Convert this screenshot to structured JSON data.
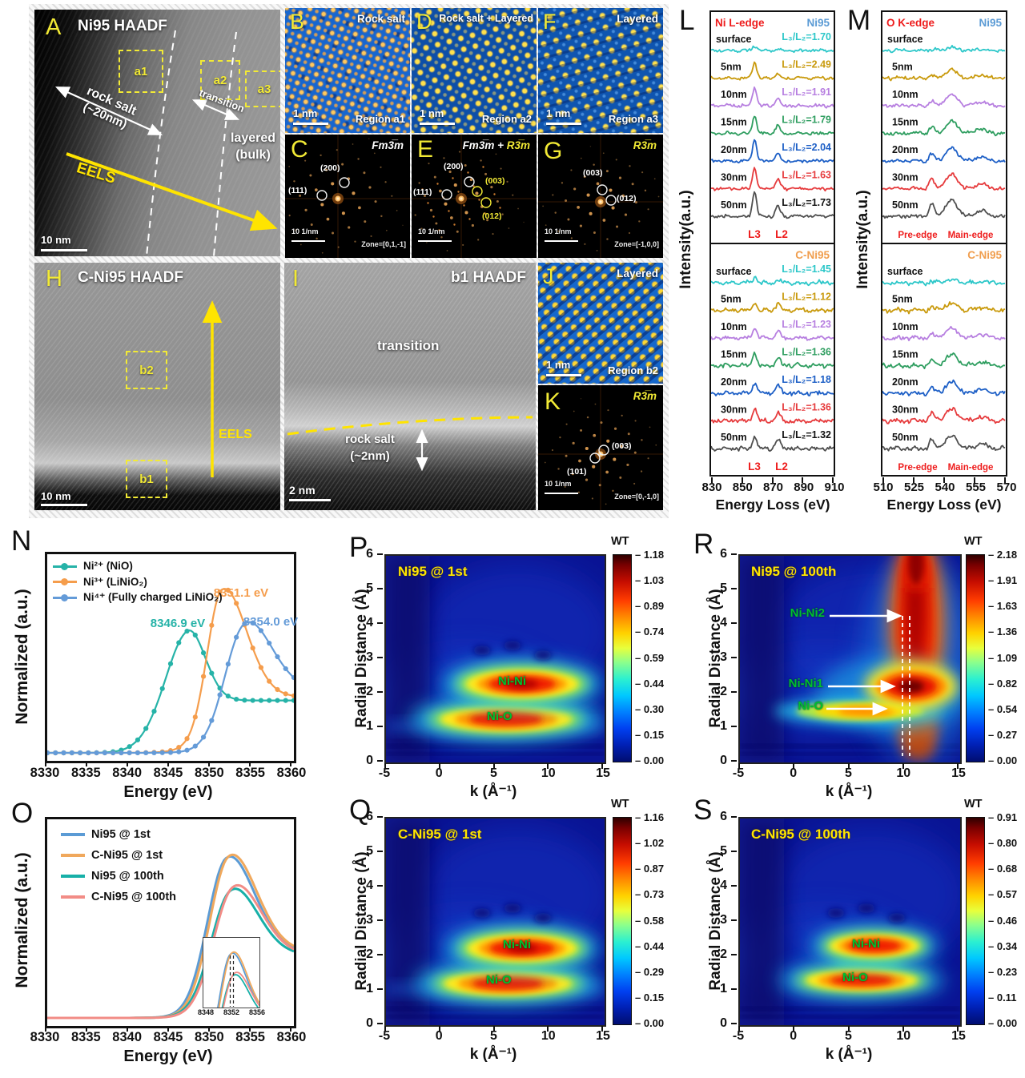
{
  "A": {
    "letter": "A",
    "title": "Ni95 HAADF",
    "a1": "a1",
    "a2": "a2",
    "a3": "a3",
    "rock_salt_1": "rock salt",
    "rock_salt_2": "(~20nm)",
    "transition": "transition",
    "layered_1": "layered",
    "layered_2": "(bulk)",
    "eels": "EELS",
    "scalebar": "10 nm"
  },
  "B": {
    "letter": "B",
    "title": "Rock salt",
    "scalebar": "1 nm",
    "region": "Region a1"
  },
  "C": {
    "letter": "C",
    "phase": "Fm3̅m",
    "spot_200": "(200)",
    "spot_111": "(111)",
    "scalebar": "10 1/nm",
    "zone": "Zone=[0,1,-1]"
  },
  "D": {
    "letter": "D",
    "title": "Rock salt + Layered",
    "scalebar": "1 nm",
    "region": "Region a2"
  },
  "E": {
    "letter": "E",
    "phase_fm": "Fm3̅m +",
    "phase_r": "R3̅m",
    "spot_200": "(200)",
    "spot_111": "(111)",
    "spot_003": "(003)",
    "spot_012": "(012)",
    "scalebar": "10 1/nm"
  },
  "F": {
    "letter": "F",
    "title": "Layered",
    "scalebar": "1 nm",
    "region": "Region a3"
  },
  "G": {
    "letter": "G",
    "phase": "R3̅m",
    "spot_003": "(003)",
    "spot_012": "(012)",
    "scalebar": "10 1/nm",
    "zone": "Zone=[-1,0,0]"
  },
  "H": {
    "letter": "H",
    "title": "C-Ni95 HAADF",
    "b2": "b2",
    "b1": "b1",
    "eels": "EELS",
    "scalebar": "10 nm"
  },
  "I": {
    "letter": "I",
    "title": "b1 HAADF",
    "transition": "transition",
    "rock_salt_1": "rock salt",
    "rock_salt_2": "(~2nm)",
    "scalebar": "2 nm"
  },
  "J": {
    "letter": "J",
    "title": "Layered",
    "scalebar": "1 nm",
    "region": "Region b2"
  },
  "K": {
    "letter": "K",
    "phase": "R3̅m",
    "spot_003": "(003)",
    "spot_101": "(101)",
    "scalebar": "10 1/nm",
    "zone": "Zone=[0,-1,0]"
  },
  "L": {
    "letter": "L",
    "edge": "Ni L-edge",
    "edge_color": "#ee1c1c",
    "sample_top": "Ni95",
    "sample_top_color": "#5b9bd5",
    "sample_bottom": "C-Ni95",
    "sample_bottom_color": "#f09e4e",
    "ylabel": "Intensity(a.u.)",
    "xlabel": "Energy Loss (eV)",
    "xticks": [
      "830",
      "850",
      "870",
      "890",
      "910"
    ],
    "l3": "L3",
    "l2": "L2",
    "colors": [
      "#2cc7c9",
      "#c99a0d",
      "#b77fe0",
      "#2f9e60",
      "#1d5fc6",
      "#e63b3d",
      "#4f4f4f"
    ],
    "top": [
      {
        "depth": "surface",
        "ratio": "L₃/L₂=1.70"
      },
      {
        "depth": "5nm",
        "ratio": "L₃/L₂=2.49"
      },
      {
        "depth": "10nm",
        "ratio": "L₃/L₂=1.91"
      },
      {
        "depth": "15nm",
        "ratio": "L₃/L₂=1.79"
      },
      {
        "depth": "20nm",
        "ratio": "L₃/L₂=2.04"
      },
      {
        "depth": "30nm",
        "ratio": "L₃/L₂=1.63"
      },
      {
        "depth": "50nm",
        "ratio": "L₃/L₂=1.73",
        "ratio_color": "#111111"
      }
    ],
    "bottom": [
      {
        "depth": "surface",
        "ratio": "L₃/L₂=1.45"
      },
      {
        "depth": "5nm",
        "ratio": "L₃/L₂=1.12"
      },
      {
        "depth": "10nm",
        "ratio": "L₃/L₂=1.23"
      },
      {
        "depth": "15nm",
        "ratio": "L₃/L₂=1.36"
      },
      {
        "depth": "20nm",
        "ratio": "L₃/L₂=1.18"
      },
      {
        "depth": "30nm",
        "ratio": "L₃/L₂=1.36"
      },
      {
        "depth": "50nm",
        "ratio": "L₃/L₂=1.32",
        "ratio_color": "#111111"
      }
    ]
  },
  "M": {
    "letter": "M",
    "edge": "O K-edge",
    "edge_color": "#ee1c1c",
    "sample_top": "Ni95",
    "sample_top_color": "#5b9bd5",
    "sample_bottom": "C-Ni95",
    "sample_bottom_color": "#f09e4e",
    "ylabel": "Intensity(a.u.)",
    "xlabel": "Energy Loss (eV)",
    "xticks": [
      "510",
      "525",
      "540",
      "555",
      "570"
    ],
    "pre_edge": "Pre-edge",
    "main_edge": "Main-edge",
    "depths": [
      "surface",
      "5nm",
      "10nm",
      "15nm",
      "20nm",
      "30nm",
      "50nm"
    ]
  },
  "N": {
    "letter": "N",
    "ylabel": "Normalized (a.u.)",
    "xlabel": "Energy (eV)",
    "xticks": [
      "8330",
      "8335",
      "8340",
      "8345",
      "8350",
      "8355",
      "8360"
    ],
    "legend": [
      {
        "label": "Ni²⁺ (NiO)",
        "color": "#26b3a8"
      },
      {
        "label": "Ni³⁺ (LiNiO₂)",
        "color": "#f59d4c"
      },
      {
        "label": "Ni⁴⁺ (Fully charged LiNiO₂)",
        "color": "#649bd8"
      }
    ],
    "ann_teal": {
      "text": "8346.9 eV",
      "color": "#26b3a8"
    },
    "ann_orange": {
      "text": "8351.1 eV",
      "color": "#f59d4c"
    },
    "ann_blue": {
      "text": "8354.0 eV",
      "color": "#649bd8"
    }
  },
  "O": {
    "letter": "O",
    "ylabel": "Normalized (a.u.)",
    "xlabel": "Energy (eV)",
    "xticks": [
      "8330",
      "8335",
      "8340",
      "8345",
      "8350",
      "8355",
      "8360"
    ],
    "legend": [
      {
        "label": "Ni95 @ 1st",
        "color": "#5b9bd5"
      },
      {
        "label": "C-Ni95 @ 1st",
        "color": "#f0a85c"
      },
      {
        "label": "Ni95 @ 100th",
        "color": "#17b0a8"
      },
      {
        "label": "C-Ni95 @ 100th",
        "color": "#f28c86"
      }
    ],
    "inset_ticks": [
      "8348",
      "8352",
      "8356"
    ]
  },
  "P": {
    "letter": "P",
    "title": "Ni95 @ 1st",
    "title_color": "#ffe600",
    "ylabel": "Radial Distance (Å)",
    "xlabel": "k (Å⁻¹)",
    "yticks": [
      "6",
      "5",
      "4",
      "3",
      "2",
      "1",
      "0"
    ],
    "xticks": [
      "-5",
      "0",
      "5",
      "10",
      "15"
    ],
    "cb_title": "WT",
    "cb_ticks": [
      "1.18",
      "1.03",
      "0.89",
      "0.74",
      "0.59",
      "0.44",
      "0.30",
      "0.15",
      "0.00"
    ],
    "nini": "Ni-Ni",
    "nio": "Ni-O",
    "green": "#00bf30"
  },
  "Q": {
    "letter": "Q",
    "title": "C-Ni95 @ 1st",
    "title_color": "#ffe600",
    "ylabel": "Radial Distance (Å)",
    "xlabel": "k (Å⁻¹)",
    "yticks": [
      "6",
      "5",
      "4",
      "3",
      "2",
      "1",
      "0"
    ],
    "xticks": [
      "-5",
      "0",
      "5",
      "10",
      "15"
    ],
    "cb_title": "WT",
    "cb_ticks": [
      "1.16",
      "1.02",
      "0.87",
      "0.73",
      "0.58",
      "0.44",
      "0.29",
      "0.15",
      "0.00"
    ],
    "nini": "Ni-Ni",
    "nio": "Ni-O",
    "green": "#00bf30"
  },
  "R": {
    "letter": "R",
    "title": "Ni95 @ 100th",
    "title_color": "#ffe600",
    "ylabel": "Radial Distance (Å)",
    "xlabel": "k (Å⁻¹)",
    "yticks": [
      "6",
      "5",
      "4",
      "3",
      "2",
      "1",
      "0"
    ],
    "xticks": [
      "-5",
      "0",
      "5",
      "10",
      "15"
    ],
    "cb_title": "WT",
    "cb_ticks": [
      "2.18",
      "1.91",
      "1.63",
      "1.36",
      "1.09",
      "0.82",
      "0.54",
      "0.27",
      "0.00"
    ],
    "nini2": "Ni-Ni2",
    "nini1": "Ni-Ni1",
    "nio": "Ni-O",
    "green": "#00bf30"
  },
  "S": {
    "letter": "S",
    "title": "C-Ni95 @ 100th",
    "title_color": "#ffe600",
    "ylabel": "Radial Distance (Å)",
    "xlabel": "k (Å⁻¹)",
    "yticks": [
      "6",
      "5",
      "4",
      "3",
      "2",
      "1",
      "0"
    ],
    "xticks": [
      "-5",
      "0",
      "5",
      "10",
      "15"
    ],
    "cb_title": "WT",
    "cb_ticks": [
      "0.91",
      "0.80",
      "0.68",
      "0.57",
      "0.46",
      "0.34",
      "0.23",
      "0.11",
      "0.00"
    ],
    "nini": "Ni-Ni",
    "nio": "Ni-O",
    "green": "#00bf30"
  },
  "chart_data": [
    {
      "type": "line",
      "panel": "L",
      "title": "Ni L-edge EELS line scan",
      "xlabel": "Energy Loss (eV)",
      "xrange": [
        830,
        910
      ],
      "peaks": {
        "L3_eV": 858,
        "L2_eV": 873
      },
      "Ni95_L3_L2": {
        "surface": 1.7,
        "5nm": 2.49,
        "10nm": 1.91,
        "15nm": 1.79,
        "20nm": 2.04,
        "30nm": 1.63,
        "50nm": 1.73
      },
      "C_Ni95_L3_L2": {
        "surface": 1.45,
        "5nm": 1.12,
        "10nm": 1.23,
        "15nm": 1.36,
        "20nm": 1.18,
        "30nm": 1.36,
        "50nm": 1.32
      }
    },
    {
      "type": "line",
      "panel": "M",
      "title": "O K-edge EELS line scan",
      "xlabel": "Energy Loss (eV)",
      "xrange": [
        510,
        570
      ],
      "features": [
        "Pre-edge",
        "Main-edge"
      ],
      "depths": [
        "surface",
        "5nm",
        "10nm",
        "15nm",
        "20nm",
        "30nm",
        "50nm"
      ],
      "samples": [
        "Ni95",
        "C-Ni95"
      ]
    },
    {
      "type": "line",
      "panel": "N",
      "xlabel": "Energy (eV)",
      "ylabel": "Normalized (a.u.)",
      "xrange": [
        8330,
        8360
      ],
      "series": [
        {
          "name": "Ni2+ (NiO)",
          "peak_eV": 8346.9
        },
        {
          "name": "Ni3+ (LiNiO2)",
          "peak_eV": 8351.1
        },
        {
          "name": "Ni4+ (Fully charged LiNiO2)",
          "peak_eV": 8354.0
        }
      ]
    },
    {
      "type": "line",
      "panel": "O",
      "xlabel": "Energy (eV)",
      "ylabel": "Normalized (a.u.)",
      "xrange": [
        8330,
        8360
      ],
      "series": [
        "Ni95 @ 1st",
        "C-Ni95 @ 1st",
        "Ni95 @ 100th",
        "C-Ni95 @ 100th"
      ],
      "peak_eV": 8352,
      "inset_xticks": [
        8348,
        8352,
        8356
      ]
    },
    {
      "type": "heatmap",
      "panel": "P",
      "title": "Ni95 @ 1st",
      "xlabel": "k (A^-1)",
      "xrange": [
        -5,
        15
      ],
      "ylabel": "Radial Distance (A)",
      "yrange": [
        0,
        6
      ],
      "wt_max": 1.18,
      "features": [
        {
          "label": "Ni-Ni",
          "R": 2.3,
          "k": 7.5
        },
        {
          "label": "Ni-O",
          "R": 1.3,
          "k": 6
        }
      ]
    },
    {
      "type": "heatmap",
      "panel": "Q",
      "title": "C-Ni95 @ 1st",
      "xrange": [
        -5,
        15
      ],
      "yrange": [
        0,
        6
      ],
      "wt_max": 1.16,
      "features": [
        {
          "label": "Ni-Ni",
          "R": 2.3,
          "k": 7.5
        },
        {
          "label": "Ni-O",
          "R": 1.3,
          "k": 6
        }
      ]
    },
    {
      "type": "heatmap",
      "panel": "R",
      "title": "Ni95 @ 100th",
      "xrange": [
        -5,
        15
      ],
      "yrange": [
        0,
        6
      ],
      "wt_max": 2.18,
      "features": [
        {
          "label": "Ni-Ni2",
          "R": 4.2,
          "k": 10.4
        },
        {
          "label": "Ni-Ni1",
          "R": 2.2,
          "k": 10.4
        },
        {
          "label": "Ni-O",
          "R": 1.5,
          "k": 10.2
        }
      ]
    },
    {
      "type": "heatmap",
      "panel": "S",
      "title": "C-Ni95 @ 100th",
      "xrange": [
        -5,
        15
      ],
      "yrange": [
        0,
        6
      ],
      "wt_max": 0.91,
      "features": [
        {
          "label": "Ni-Ni",
          "R": 2.3,
          "k": 7.2
        },
        {
          "label": "Ni-O",
          "R": 1.3,
          "k": 6
        }
      ]
    }
  ]
}
